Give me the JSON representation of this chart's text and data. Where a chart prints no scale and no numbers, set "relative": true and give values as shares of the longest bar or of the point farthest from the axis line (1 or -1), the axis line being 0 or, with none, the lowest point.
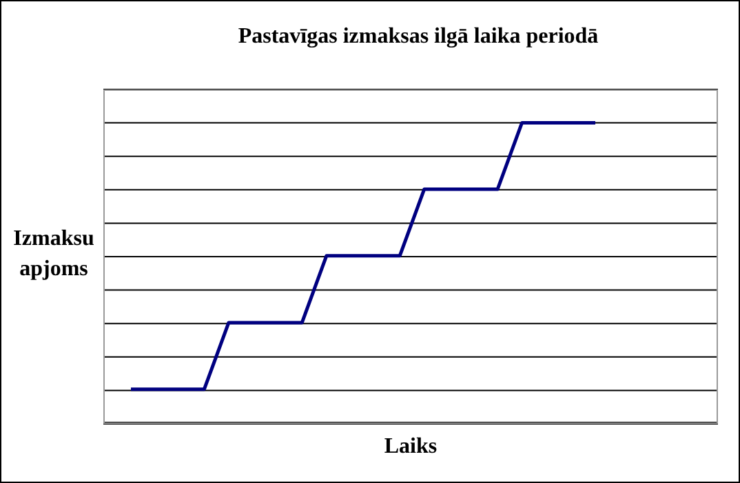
{
  "chart_data": {
    "type": "line",
    "title": "Pastavīgas izmaksas ilgā laika periodā",
    "xlabel": "Laiks",
    "ylabel": "Izmaksu apjoms",
    "relative": true,
    "grid": "y",
    "marker": "none",
    "line_style": "solid",
    "categories": [
      null,
      null,
      null,
      null,
      null,
      null,
      null,
      null,
      null,
      null,
      null,
      null,
      null,
      null,
      null,
      null,
      null,
      null,
      null,
      null
    ],
    "series": [
      {
        "color": "#000080",
        "values": [
          0.111,
          0.111,
          0.111,
          0.111,
          0.333,
          0.333,
          0.333,
          0.333,
          0.556,
          0.556,
          0.556,
          0.556,
          0.778,
          0.778,
          0.778,
          0.778,
          1,
          1,
          1,
          1
        ]
      }
    ]
  }
}
